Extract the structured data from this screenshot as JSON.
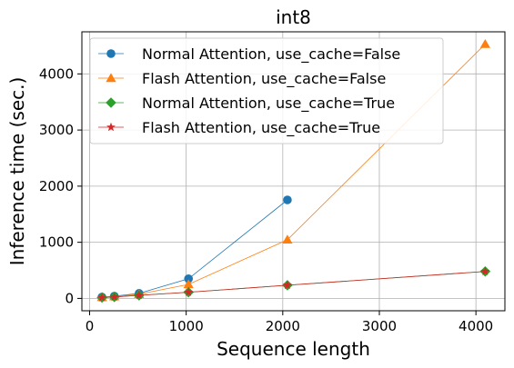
{
  "chart_data": {
    "type": "line",
    "title": "int8",
    "xlabel": "Sequence length",
    "ylabel": "Inference time (sec.)",
    "xlim": [
      -80,
      4300
    ],
    "ylim": [
      -220,
      4750
    ],
    "xticks": [
      0,
      1000,
      2000,
      3000,
      4000
    ],
    "yticks": [
      0,
      1000,
      2000,
      3000,
      4000
    ],
    "grid": true,
    "legend_position": "top-left",
    "series": [
      {
        "name": "Normal Attention, use_cache=False",
        "color": "#1f77b4",
        "marker": "circle",
        "x": [
          128,
          256,
          512,
          1024,
          2048
        ],
        "y": [
          25,
          40,
          90,
          350,
          1755
        ]
      },
      {
        "name": "Flash Attention, use_cache=False",
        "color": "#ff7f0e",
        "marker": "triangle",
        "x": [
          128,
          256,
          512,
          1024,
          2048,
          4096
        ],
        "y": [
          20,
          35,
          75,
          250,
          1045,
          4530
        ]
      },
      {
        "name": "Normal Attention, use_cache=True",
        "color": "#2ca02c",
        "marker": "diamond",
        "x": [
          128,
          256,
          512,
          1024,
          2048,
          4096
        ],
        "y": [
          15,
          25,
          55,
          110,
          235,
          480
        ]
      },
      {
        "name": "Flash Attention, use_cache=True",
        "color": "#d62728",
        "marker": "star",
        "x": [
          128,
          256,
          512,
          1024,
          2048,
          4096
        ],
        "y": [
          15,
          25,
          55,
          110,
          235,
          480
        ]
      }
    ]
  }
}
